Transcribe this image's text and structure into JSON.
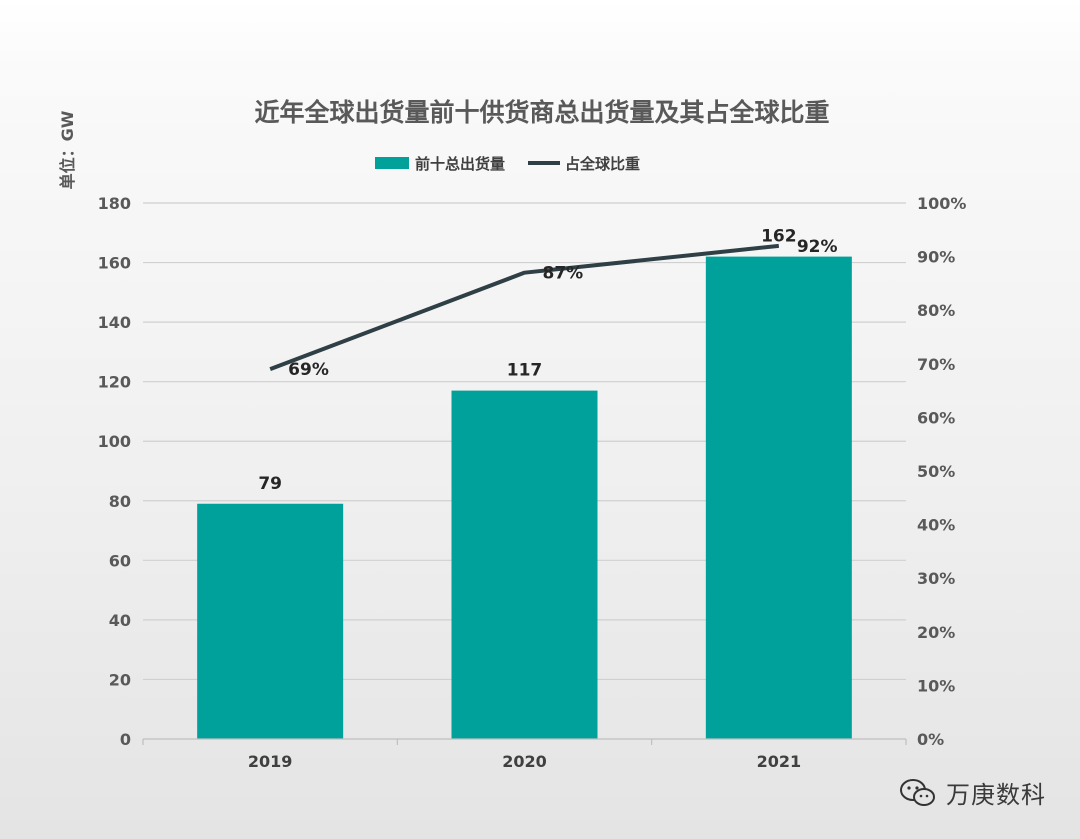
{
  "chart_data": {
    "type": "bar",
    "title": "近年全球出货量前十供货商总出货量及其占全球比重",
    "unit_label": "单位：GW",
    "categories": [
      "2019",
      "2020",
      "2021"
    ],
    "series": [
      {
        "name": "前十总出货量",
        "type": "bar",
        "axis": "left",
        "values": [
          79,
          117,
          162
        ],
        "labels": [
          "79",
          "117",
          "162"
        ]
      },
      {
        "name": "占全球比重",
        "type": "line",
        "axis": "right",
        "values": [
          69,
          87,
          92
        ],
        "labels": [
          "69%",
          "87%",
          "92%"
        ]
      }
    ],
    "y_left": {
      "min": 0,
      "max": 180,
      "ticks": [
        "0",
        "20",
        "40",
        "60",
        "80",
        "100",
        "120",
        "140",
        "160",
        "180"
      ]
    },
    "y_right": {
      "min": 0,
      "max": 100,
      "ticks": [
        "0%",
        "10%",
        "20%",
        "30%",
        "40%",
        "50%",
        "60%",
        "70%",
        "80%",
        "90%",
        "100%"
      ]
    },
    "grid": true,
    "legend_position": "top",
    "colors": {
      "bar": "#00A19A",
      "line": "#2F3F46"
    }
  },
  "watermark": {
    "text": "万庚数科",
    "icon": "wechat-icon"
  }
}
